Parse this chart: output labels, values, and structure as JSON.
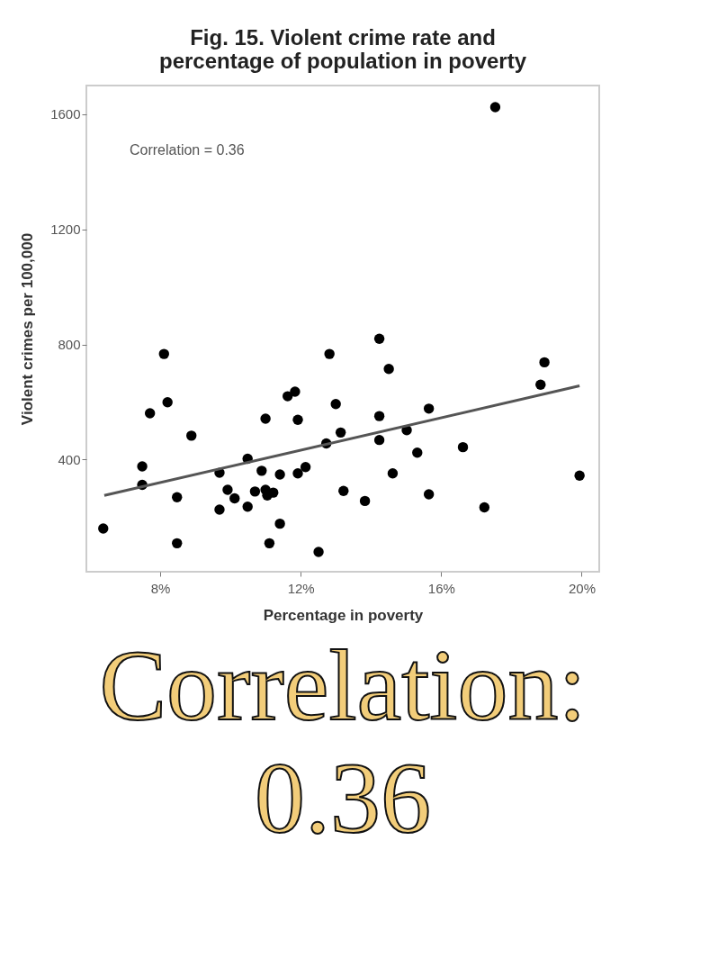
{
  "chart_data": {
    "type": "scatter",
    "title": [
      "Fig. 15. Violent crime rate and",
      "percentage of population in poverty"
    ],
    "xlabel": "Percentage in poverty",
    "ylabel": "Violent crimes per 100,000",
    "xlim": [
      5.9,
      20.5
    ],
    "ylim": [
      10,
      1700
    ],
    "xticks": [
      {
        "value": 8,
        "label": "8%"
      },
      {
        "value": 12,
        "label": "12%"
      },
      {
        "value": 16,
        "label": "16%"
      },
      {
        "value": 20,
        "label": "20%"
      }
    ],
    "yticks": [
      400,
      800,
      {
        "value": 1200,
        "label": "1200"
      },
      {
        "value": 1600,
        "label": "1600"
      }
    ],
    "grid": false,
    "annotations": [
      "Correlation = 0.36",
      "Correlation:",
      "0.36"
    ],
    "series": [
      {
        "color": "#000000",
        "marker": "circle",
        "x": [
          6.38,
          7.49,
          7.49,
          7.71,
          8.11,
          8.21,
          8.48,
          8.48,
          8.89,
          9.69,
          9.69,
          9.92,
          10.12,
          10.49,
          10.49,
          10.7,
          10.89,
          11.0,
          11.0,
          11.05,
          11.11,
          11.22,
          11.41,
          11.41,
          11.63,
          11.84,
          11.92,
          11.92,
          12.14,
          12.51,
          12.73,
          12.82,
          13.0,
          13.14,
          13.22,
          13.83,
          14.24,
          14.24,
          14.24,
          14.51,
          14.62,
          15.02,
          15.32,
          15.65,
          15.65,
          16.62,
          17.23,
          18.83,
          18.94,
          19.94,
          17.54
        ],
        "values": [
          160,
          376,
          312,
          561,
          767,
          599,
          269,
          109,
          483,
          354,
          226,
          295,
          265,
          403,
          236,
          289,
          361,
          542,
          295,
          275,
          109,
          285,
          348,
          177,
          620,
          636,
          538,
          352,
          374,
          79,
          456,
          767,
          593,
          494,
          291,
          256,
          820,
          551,
          468,
          715,
          352,
          502,
          424,
          577,
          279,
          443,
          234,
          660,
          738,
          344,
          1625
        ]
      },
      {
        "type": "line",
        "color": "#555555",
        "x": [
          6.41,
          19.94
        ],
        "values": [
          275,
          656
        ],
        "line_style": "solid"
      }
    ]
  }
}
